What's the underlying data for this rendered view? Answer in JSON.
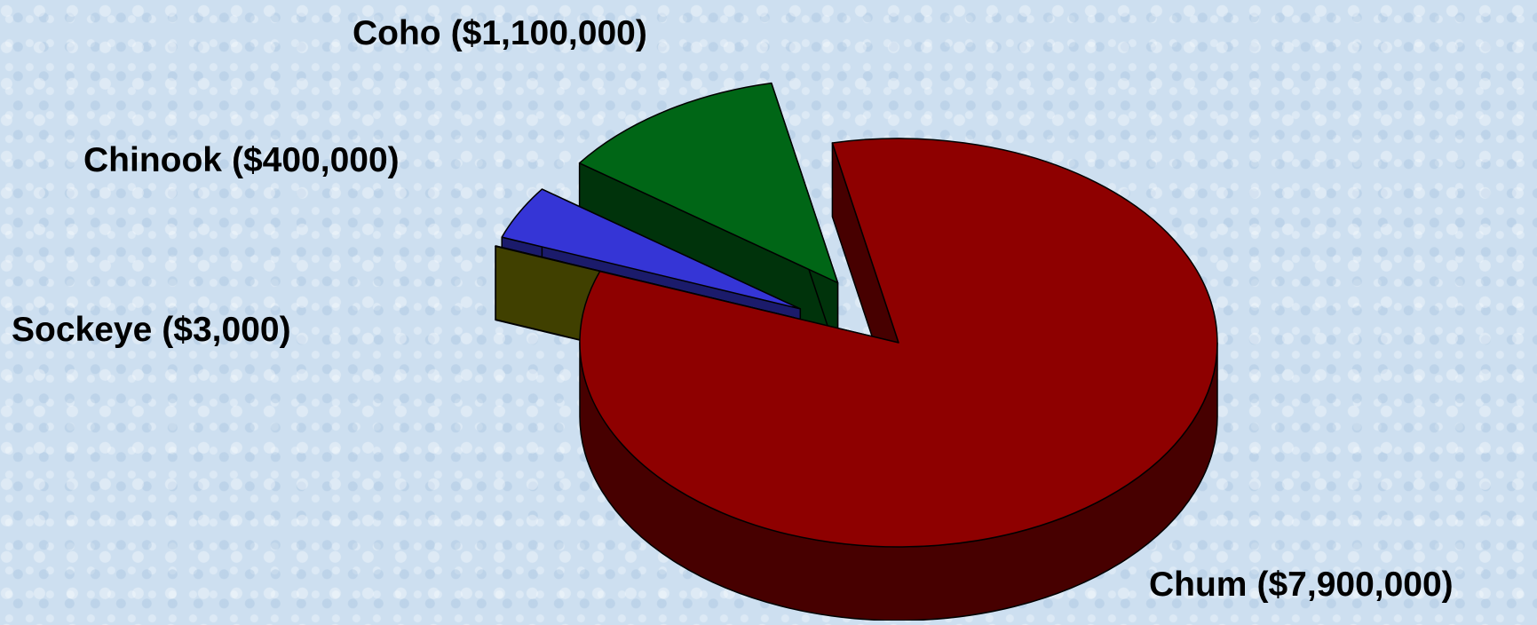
{
  "chart_data": {
    "type": "pie3d",
    "categories": [
      "Chum",
      "Sockeye",
      "Chinook",
      "Coho"
    ],
    "values": [
      7900000,
      3000,
      400000,
      1100000
    ],
    "value_labels": [
      "($7,900,000)",
      "($3,000)",
      "($400,000)",
      "($1,100,000)"
    ],
    "colors": [
      "#8e0000",
      "#808000",
      "#3535d6",
      "#006616"
    ]
  }
}
